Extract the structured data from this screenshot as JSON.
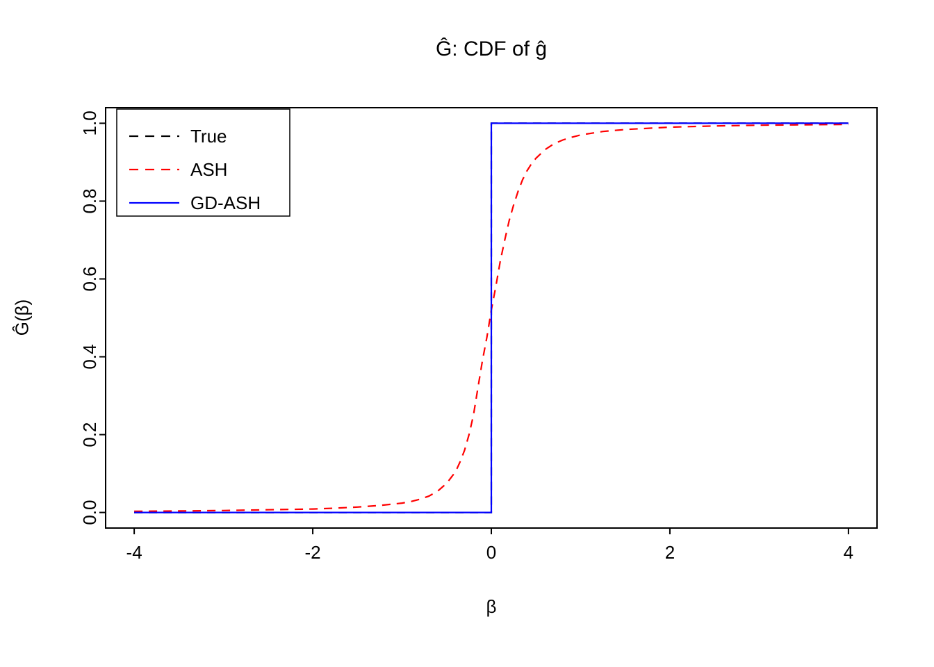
{
  "chart_data": {
    "type": "line",
    "title": "Ĝ: CDF of ĝ",
    "xlabel": "β",
    "ylabel": "Ĝ(β)",
    "xlim": [
      -4.32,
      4.32
    ],
    "ylim": [
      -0.04,
      1.04
    ],
    "x_ticks": [
      -4,
      -2,
      0,
      2,
      4
    ],
    "x_tick_labels": [
      "-4",
      "-2",
      "0",
      "2",
      "4"
    ],
    "y_ticks": [
      0,
      0.2,
      0.4,
      0.6,
      0.8,
      1
    ],
    "y_tick_labels": [
      "0.0",
      "0.2",
      "0.4",
      "0.6",
      "0.8",
      "1.0"
    ],
    "grid": false,
    "legend": {
      "position": "top-left",
      "entries": [
        {
          "label": "True",
          "color": "#000000",
          "style": "dashed"
        },
        {
          "label": "ASH",
          "color": "#ff0000",
          "style": "dashed"
        },
        {
          "label": "GD-ASH",
          "color": "#0000ff",
          "style": "solid"
        }
      ]
    },
    "series": [
      {
        "name": "True",
        "color": "#000000",
        "style": "dashed",
        "x": [
          -4,
          0,
          0,
          4
        ],
        "y": [
          0,
          0,
          1,
          1
        ]
      },
      {
        "name": "ASH",
        "color": "#ff0000",
        "style": "dashed",
        "x": [
          -4,
          -3.5,
          -3,
          -2.5,
          -2,
          -1.75,
          -1.5,
          -1.25,
          -1,
          -0.9,
          -0.8,
          -0.7,
          -0.6,
          -0.5,
          -0.45,
          -0.4,
          -0.35,
          -0.3,
          -0.25,
          -0.2,
          -0.15,
          -0.1,
          -0.05,
          0,
          0.05,
          0.1,
          0.15,
          0.2,
          0.25,
          0.3,
          0.35,
          0.4,
          0.45,
          0.5,
          0.6,
          0.7,
          0.8,
          0.9,
          1,
          1.25,
          1.5,
          2,
          2.5,
          3,
          3.5,
          4
        ],
        "y": [
          0.003,
          0.004,
          0.005,
          0.007,
          0.009,
          0.011,
          0.014,
          0.018,
          0.024,
          0.028,
          0.034,
          0.042,
          0.055,
          0.075,
          0.09,
          0.105,
          0.13,
          0.16,
          0.2,
          0.25,
          0.32,
          0.39,
          0.45,
          0.52,
          0.58,
          0.645,
          0.7,
          0.75,
          0.79,
          0.825,
          0.855,
          0.878,
          0.896,
          0.91,
          0.932,
          0.947,
          0.957,
          0.964,
          0.97,
          0.979,
          0.984,
          0.99,
          0.993,
          0.995,
          0.996,
          0.997
        ]
      },
      {
        "name": "GD-ASH",
        "color": "#0000ff",
        "style": "solid",
        "x": [
          -4,
          0,
          0,
          4
        ],
        "y": [
          0,
          0,
          1,
          1
        ]
      }
    ]
  }
}
